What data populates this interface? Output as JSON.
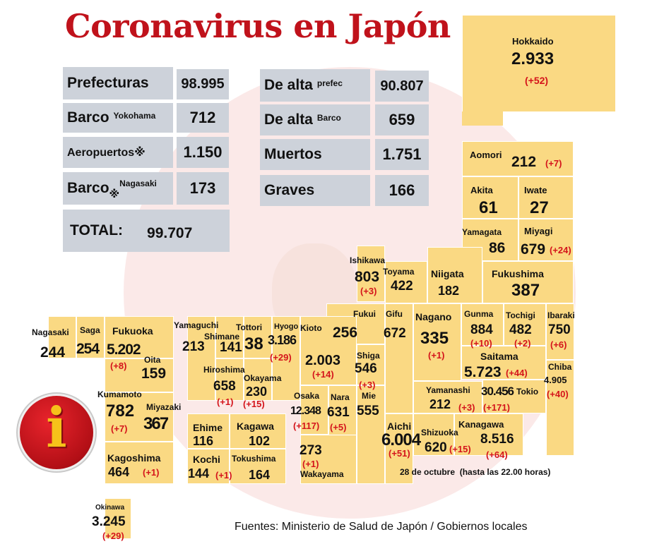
{
  "title": "Coronavirus en Japón",
  "summary": {
    "prefecturas": {
      "label": "Prefecturas",
      "value": "98.995"
    },
    "barco_yokohama": {
      "label": "Barco",
      "sub": "Yokohama",
      "value": "712"
    },
    "aeropuertos": {
      "label": "Aeropuertos※",
      "value": "1.150"
    },
    "barco_nagasaki": {
      "label": "Barco",
      "mark": "※",
      "sub": "Nagasaki",
      "value": "173"
    },
    "total": {
      "label": "TOTAL:",
      "value": "99.707"
    },
    "alta_prefec": {
      "label": "De alta",
      "sub": "prefec",
      "value": "90.807"
    },
    "alta_barco": {
      "label": "De alta",
      "sub": "Barco",
      "value": "659"
    },
    "muertos": {
      "label": "Muertos",
      "value": "1.751"
    },
    "graves": {
      "label": "Graves",
      "value": "166"
    }
  },
  "prefectures": {
    "hokkaido": {
      "name": "Hokkaido",
      "value": "2.933",
      "delta": "(+52)"
    },
    "aomori": {
      "name": "Aomori",
      "value": "212",
      "delta": "(+7)"
    },
    "akita": {
      "name": "Akita",
      "value": "61"
    },
    "iwate": {
      "name": "Iwate",
      "value": "27"
    },
    "yamagata": {
      "name": "Yamagata",
      "value": "86"
    },
    "miyagi": {
      "name": "Miyagi",
      "value": "679",
      "delta": "(+24)"
    },
    "ishikawa": {
      "name": "Ishikawa",
      "value": "803",
      "delta": "(+3)"
    },
    "toyama": {
      "name": "Toyama",
      "value": "422"
    },
    "niigata": {
      "name": "Niigata",
      "value": "182"
    },
    "fukushima": {
      "name": "Fukushima",
      "value": "387"
    },
    "fukui": {
      "name": "Fukui",
      "value": "256"
    },
    "gifu": {
      "name": "Gifu",
      "value": "672"
    },
    "nagano": {
      "name": "Nagano",
      "value": "335",
      "delta": "(+1)"
    },
    "gunma": {
      "name": "Gunma",
      "value": "884",
      "delta": "(+10)"
    },
    "tochigi": {
      "name": "Tochigi",
      "value": "482",
      "delta": "(+2)"
    },
    "ibaraki": {
      "name": "Ibaraki",
      "value": "750",
      "delta": "(+6)"
    },
    "saitama": {
      "name": "Saitama",
      "value": "5.723",
      "delta": "(+44)"
    },
    "chiba": {
      "name": "Chiba",
      "value": "4.905",
      "delta": "(+40)"
    },
    "yamanashi": {
      "name": "Yamanashi",
      "value": "212",
      "delta": "(+3)"
    },
    "tokio": {
      "name": "Tokio",
      "value": "30.456",
      "delta": "(+171)"
    },
    "kanagawa": {
      "name": "Kanagawa",
      "value": "8.516",
      "delta": "(+64)"
    },
    "shizuoka": {
      "name": "Shizuoka",
      "value": "620",
      "delta": "(+15)"
    },
    "aichi": {
      "name": "Aichi",
      "value": "6.004",
      "delta": "(+51)"
    },
    "shiga": {
      "name": "Shiga",
      "value": "546",
      "delta": "(+3)"
    },
    "mie": {
      "name": "Mie",
      "value": "555"
    },
    "nara": {
      "name": "Nara",
      "value": "631",
      "delta": "(+5)"
    },
    "osaka": {
      "name": "Osaka",
      "value": "12.348",
      "delta": "(+117)"
    },
    "kioto": {
      "name": "Kioto",
      "value": "2.003",
      "delta": "(+14)"
    },
    "hyogo": {
      "name": "Hyogo",
      "value": "3.186",
      "delta": "(+29)"
    },
    "wakayama": {
      "name": "Wakayama",
      "value": "273",
      "delta": "(+1)"
    },
    "tottori": {
      "name": "Tottori",
      "value": "38"
    },
    "shimane": {
      "name": "Shimane",
      "value": "141"
    },
    "okayama": {
      "name": "Okayama",
      "value": "230",
      "delta": "(+15)"
    },
    "hiroshima": {
      "name": "Hiroshima",
      "value": "658",
      "delta": "(+1)"
    },
    "yamaguchi": {
      "name": "Yamaguchi",
      "value": "213"
    },
    "ehime": {
      "name": "Ehime",
      "value": "116"
    },
    "kagawa": {
      "name": "Kagawa",
      "value": "102"
    },
    "kochi": {
      "name": "Kochi",
      "value": "144",
      "delta": "(+1)"
    },
    "tokushima": {
      "name": "Tokushima",
      "value": "164"
    },
    "nagasaki": {
      "name": "Nagasaki",
      "value": "244"
    },
    "saga": {
      "name": "Saga",
      "value": "254"
    },
    "fukuoka": {
      "name": "Fukuoka",
      "value": "5.202",
      "delta": "(+8)"
    },
    "oita": {
      "name": "Oita",
      "value": "159"
    },
    "kumamoto": {
      "name": "Kumamoto",
      "value": "782",
      "delta": "(+7)"
    },
    "miyazaki": {
      "name": "Miyazaki",
      "value": "367"
    },
    "kagoshima": {
      "name": "Kagoshima",
      "value": "464",
      "delta": "(+1)"
    },
    "okinawa": {
      "name": "Okinawa",
      "value": "3.245",
      "delta": "(+29)"
    }
  },
  "date_note": "28 de octubre  (hasta las 22.00 horas)",
  "sources": "Fuentes: Ministerio de Salud de Japón / Gobiernos locales",
  "info_icon": "i",
  "colors": {
    "title": "#c0121b",
    "cell": "#fad983",
    "summary_box": "#cdd2da",
    "delta": "#d4141b"
  }
}
